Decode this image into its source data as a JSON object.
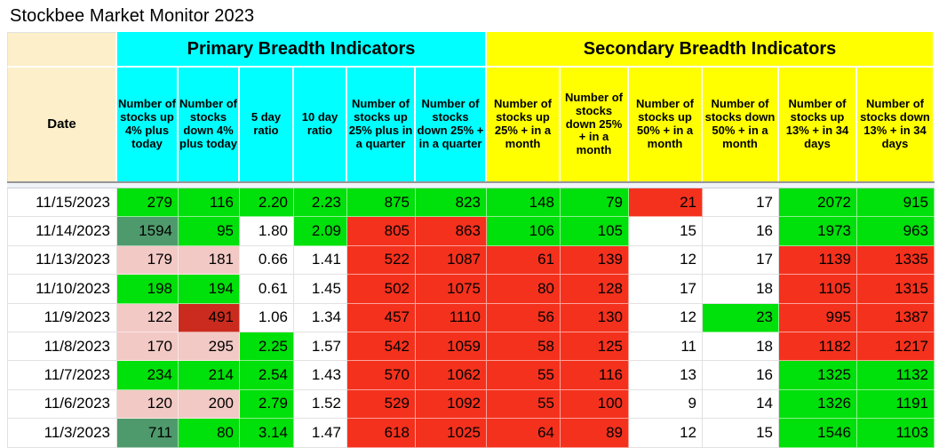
{
  "title": "Stockbee Market Monitor 2023",
  "colors": {
    "cyan": "#00FFFF",
    "yellow": "#FFFF00",
    "cream": "#FCEFC9",
    "green": "#00E00A",
    "seagreen": "#4F9A6C",
    "red": "#F4311D",
    "darkred": "#CB2B1E",
    "pink": "#F2C9C5"
  },
  "table": {
    "sections": {
      "primary_label": "Primary Breadth Indicators",
      "secondary_label": "Secondary Breadth Indicators"
    },
    "columns": [
      {
        "key": "date",
        "label": "Date",
        "section": "date"
      },
      {
        "key": "up-4pct-today",
        "label": "Number of stocks up 4% plus today",
        "section": "primary"
      },
      {
        "key": "down-4pct-today",
        "label": "Number of stocks down 4% plus today",
        "section": "primary"
      },
      {
        "key": "5-day-ratio",
        "label": "5 day ratio",
        "section": "primary"
      },
      {
        "key": "10-day-ratio",
        "label": "10 day ratio",
        "section": "primary"
      },
      {
        "key": "up-25pct-quarter",
        "label": "Number of stocks up 25% plus in a quarter",
        "section": "primary"
      },
      {
        "key": "down-25pct-quarter",
        "label": "Number of stocks down 25% + in a quarter",
        "section": "primary"
      },
      {
        "key": "up-25pct-month",
        "label": "Number of stocks up 25% + in a month",
        "section": "secondary"
      },
      {
        "key": "down-25pct-month",
        "label": "Number of stocks down 25% + in a month",
        "section": "secondary"
      },
      {
        "key": "up-50pct-month",
        "label": "Number of stocks up 50% + in a month",
        "section": "secondary"
      },
      {
        "key": "down-50pct-month",
        "label": "Number of stocks down 50% + in a month",
        "section": "secondary"
      },
      {
        "key": "up-13pct-34-days",
        "label": "Number of stocks up 13% + in 34 days",
        "section": "secondary"
      },
      {
        "key": "down-13pct-34-days",
        "label": "Number of stocks down 13% + in 34 days",
        "section": "secondary"
      }
    ],
    "rows": [
      {
        "date": "11/15/2023",
        "cells": [
          {
            "v": "279",
            "c": "green"
          },
          {
            "v": "116",
            "c": "green"
          },
          {
            "v": "2.20",
            "c": "green"
          },
          {
            "v": "2.23",
            "c": "green"
          },
          {
            "v": "875",
            "c": "green"
          },
          {
            "v": "823",
            "c": "green"
          },
          {
            "v": "148",
            "c": "green"
          },
          {
            "v": "79",
            "c": "green"
          },
          {
            "v": "21",
            "c": "red"
          },
          {
            "v": "17",
            "c": "white"
          },
          {
            "v": "2072",
            "c": "green"
          },
          {
            "v": "915",
            "c": "green"
          }
        ]
      },
      {
        "date": "11/14/2023",
        "cells": [
          {
            "v": "1594",
            "c": "seagreen"
          },
          {
            "v": "95",
            "c": "green"
          },
          {
            "v": "1.80",
            "c": "white"
          },
          {
            "v": "2.09",
            "c": "green"
          },
          {
            "v": "805",
            "c": "red"
          },
          {
            "v": "863",
            "c": "red"
          },
          {
            "v": "106",
            "c": "green"
          },
          {
            "v": "105",
            "c": "green"
          },
          {
            "v": "15",
            "c": "white"
          },
          {
            "v": "16",
            "c": "white"
          },
          {
            "v": "1973",
            "c": "green"
          },
          {
            "v": "963",
            "c": "green"
          }
        ]
      },
      {
        "date": "11/13/2023",
        "cells": [
          {
            "v": "179",
            "c": "pink"
          },
          {
            "v": "181",
            "c": "pink"
          },
          {
            "v": "0.66",
            "c": "white"
          },
          {
            "v": "1.41",
            "c": "white"
          },
          {
            "v": "522",
            "c": "red"
          },
          {
            "v": "1087",
            "c": "red"
          },
          {
            "v": "61",
            "c": "red"
          },
          {
            "v": "139",
            "c": "red"
          },
          {
            "v": "12",
            "c": "white"
          },
          {
            "v": "17",
            "c": "white"
          },
          {
            "v": "1139",
            "c": "red"
          },
          {
            "v": "1335",
            "c": "red"
          }
        ]
      },
      {
        "date": "11/10/2023",
        "cells": [
          {
            "v": "198",
            "c": "green"
          },
          {
            "v": "194",
            "c": "green"
          },
          {
            "v": "0.61",
            "c": "white"
          },
          {
            "v": "1.45",
            "c": "white"
          },
          {
            "v": "502",
            "c": "red"
          },
          {
            "v": "1075",
            "c": "red"
          },
          {
            "v": "80",
            "c": "red"
          },
          {
            "v": "128",
            "c": "red"
          },
          {
            "v": "17",
            "c": "white"
          },
          {
            "v": "18",
            "c": "white"
          },
          {
            "v": "1105",
            "c": "red"
          },
          {
            "v": "1315",
            "c": "red"
          }
        ]
      },
      {
        "date": "11/9/2023",
        "cells": [
          {
            "v": "122",
            "c": "pink"
          },
          {
            "v": "491",
            "c": "darkred"
          },
          {
            "v": "1.06",
            "c": "white"
          },
          {
            "v": "1.34",
            "c": "white"
          },
          {
            "v": "457",
            "c": "red"
          },
          {
            "v": "1110",
            "c": "red"
          },
          {
            "v": "56",
            "c": "red"
          },
          {
            "v": "130",
            "c": "red"
          },
          {
            "v": "12",
            "c": "white"
          },
          {
            "v": "23",
            "c": "green"
          },
          {
            "v": "995",
            "c": "red"
          },
          {
            "v": "1387",
            "c": "red"
          }
        ]
      },
      {
        "date": "11/8/2023",
        "cells": [
          {
            "v": "170",
            "c": "pink"
          },
          {
            "v": "295",
            "c": "pink"
          },
          {
            "v": "2.25",
            "c": "green"
          },
          {
            "v": "1.57",
            "c": "white"
          },
          {
            "v": "542",
            "c": "red"
          },
          {
            "v": "1059",
            "c": "red"
          },
          {
            "v": "58",
            "c": "red"
          },
          {
            "v": "125",
            "c": "red"
          },
          {
            "v": "11",
            "c": "white"
          },
          {
            "v": "18",
            "c": "white"
          },
          {
            "v": "1182",
            "c": "red"
          },
          {
            "v": "1217",
            "c": "red"
          }
        ]
      },
      {
        "date": "11/7/2023",
        "cells": [
          {
            "v": "234",
            "c": "green"
          },
          {
            "v": "214",
            "c": "green"
          },
          {
            "v": "2.54",
            "c": "green"
          },
          {
            "v": "1.43",
            "c": "white"
          },
          {
            "v": "570",
            "c": "red"
          },
          {
            "v": "1062",
            "c": "red"
          },
          {
            "v": "55",
            "c": "red"
          },
          {
            "v": "116",
            "c": "red"
          },
          {
            "v": "13",
            "c": "white"
          },
          {
            "v": "16",
            "c": "white"
          },
          {
            "v": "1325",
            "c": "green"
          },
          {
            "v": "1132",
            "c": "green"
          }
        ]
      },
      {
        "date": "11/6/2023",
        "cells": [
          {
            "v": "120",
            "c": "pink"
          },
          {
            "v": "200",
            "c": "pink"
          },
          {
            "v": "2.79",
            "c": "green"
          },
          {
            "v": "1.52",
            "c": "white"
          },
          {
            "v": "529",
            "c": "red"
          },
          {
            "v": "1092",
            "c": "red"
          },
          {
            "v": "55",
            "c": "red"
          },
          {
            "v": "100",
            "c": "red"
          },
          {
            "v": "9",
            "c": "white"
          },
          {
            "v": "14",
            "c": "white"
          },
          {
            "v": "1326",
            "c": "green"
          },
          {
            "v": "1191",
            "c": "green"
          }
        ]
      },
      {
        "date": "11/3/2023",
        "cells": [
          {
            "v": "711",
            "c": "seagreen"
          },
          {
            "v": "80",
            "c": "green"
          },
          {
            "v": "3.14",
            "c": "green"
          },
          {
            "v": "1.47",
            "c": "white"
          },
          {
            "v": "618",
            "c": "red"
          },
          {
            "v": "1025",
            "c": "red"
          },
          {
            "v": "64",
            "c": "red"
          },
          {
            "v": "89",
            "c": "red"
          },
          {
            "v": "12",
            "c": "white"
          },
          {
            "v": "15",
            "c": "white"
          },
          {
            "v": "1546",
            "c": "green"
          },
          {
            "v": "1103",
            "c": "green"
          }
        ]
      }
    ]
  }
}
